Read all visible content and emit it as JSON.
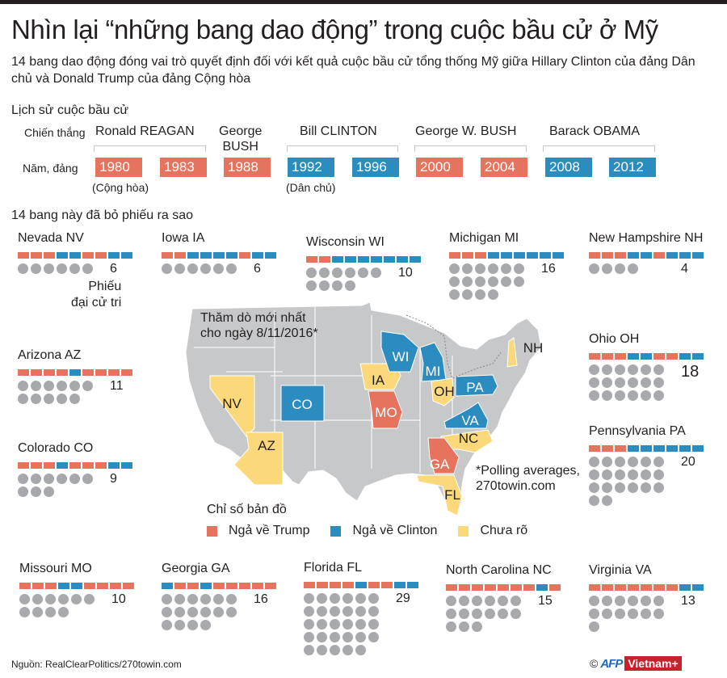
{
  "header": {
    "title": "Nhìn lại “những bang dao động” trong cuộc bầu cử ở Mỹ",
    "subtitle": "14 bang dao động đóng vai trò quyết định đối với kết quả cuộc bầu cử tổng thống Mỹ giữa Hillary Clinton của đảng Dân chủ và Donald Trump của đảng Cộng hòa"
  },
  "colors": {
    "republican": "#e5735d",
    "democrat": "#2a8cbf",
    "undecided": "#fbd97a",
    "map_gray": "#c7c8ca",
    "dot_gray": "#a7a9ac"
  },
  "history": {
    "section_title": "Lịch sử cuộc bầu cử",
    "winner_label": "Chiến thắng",
    "year_label": "Năm, đảng",
    "presidents": [
      {
        "name": "Ronald REAGAN"
      },
      {
        "name_line1": "George",
        "name_line2": "BUSH"
      },
      {
        "name": "Bill CLINTON"
      },
      {
        "name": "George W. BUSH"
      },
      {
        "name": "Barack OBAMA"
      }
    ],
    "years": [
      {
        "year": "1980",
        "party": "R"
      },
      {
        "year": "1983",
        "party": "R"
      },
      {
        "year": "1988",
        "party": "R"
      },
      {
        "year": "1992",
        "party": "D"
      },
      {
        "year": "1996",
        "party": "D"
      },
      {
        "year": "2000",
        "party": "R"
      },
      {
        "year": "2004",
        "party": "R"
      },
      {
        "year": "2008",
        "party": "D"
      },
      {
        "year": "2012",
        "party": "D"
      }
    ],
    "rep_label": "(Cộng hòa)",
    "dem_label": "(Dân chủ)"
  },
  "states_section_title": "14 bang này đã bỏ phiếu ra sao",
  "ev_note_line1": "Phiếu",
  "ev_note_line2": "đại cử tri",
  "states": [
    {
      "name": "Nevada NV",
      "history": "RRRDDRRDD",
      "ev": "6"
    },
    {
      "name": "Iowa IA",
      "history": "RRDDDDRDD",
      "ev": "6"
    },
    {
      "name": "Wisconsin WI",
      "history": "RRDDDDDDD",
      "ev": "10"
    },
    {
      "name": "Michigan MI",
      "history": "RRRDDDDDD",
      "ev": "16"
    },
    {
      "name": "New Hampshire NH",
      "history": "RRRDDRDDD",
      "ev": "4"
    },
    {
      "name": "Arizona AZ",
      "history": "RRRRDRRRR",
      "ev": "11"
    },
    {
      "name": "Ohio OH",
      "history": "RRRDDRRDD",
      "ev": "18"
    },
    {
      "name": "Colorado CO",
      "history": "RRRDRRRDD",
      "ev": "9"
    },
    {
      "name": "Pennsylvania PA",
      "history": "RRRDDDDDD",
      "ev": "20"
    },
    {
      "name": "Missouri MO",
      "history": "RRRDDRRRR",
      "ev": "10"
    },
    {
      "name": "Georgia GA",
      "history": "DRRDRRRRR",
      "ev": "16"
    },
    {
      "name": "Florida FL",
      "history": "RRRRDRRDD",
      "ev": "29"
    },
    {
      "name": "North Carolina NC",
      "history": "RRRRRRRDR",
      "ev": "15"
    },
    {
      "name": "Virginia VA",
      "history": "RRRRRRRDD",
      "ev": "13"
    }
  ],
  "map": {
    "note_line1": "Thăm dò mới nhất",
    "note_line2": "cho ngày 8/11/2016*",
    "footnote_line1": "*Polling averages,",
    "footnote_line2": "270towin.com",
    "state_labels": [
      {
        "abbr": "NV",
        "lean": "undecided"
      },
      {
        "abbr": "AZ",
        "lean": "undecided"
      },
      {
        "abbr": "CO",
        "lean": "clinton"
      },
      {
        "abbr": "IA",
        "lean": "undecided"
      },
      {
        "abbr": "MO",
        "lean": "trump"
      },
      {
        "abbr": "WI",
        "lean": "clinton"
      },
      {
        "abbr": "MI",
        "lean": "clinton"
      },
      {
        "abbr": "OH",
        "lean": "undecided"
      },
      {
        "abbr": "PA",
        "lean": "clinton"
      },
      {
        "abbr": "VA",
        "lean": "clinton"
      },
      {
        "abbr": "NC",
        "lean": "undecided"
      },
      {
        "abbr": "GA",
        "lean": "trump"
      },
      {
        "abbr": "FL",
        "lean": "undecided"
      },
      {
        "abbr": "NH",
        "lean": "undecided"
      }
    ]
  },
  "legend": {
    "title": "Chỉ số bản đồ",
    "items": [
      {
        "label": "Ngả về Trump",
        "color": "#e5735d"
      },
      {
        "label": "Ngả về Clinton",
        "color": "#2a8cbf"
      },
      {
        "label": "Chưa rõ",
        "color": "#fbd97a"
      }
    ]
  },
  "footer": {
    "source": "Nguồn: RealClearPolitics/270towin.com",
    "copyright": "©",
    "afp": "AFP",
    "vietnam": "Vietnam+"
  }
}
